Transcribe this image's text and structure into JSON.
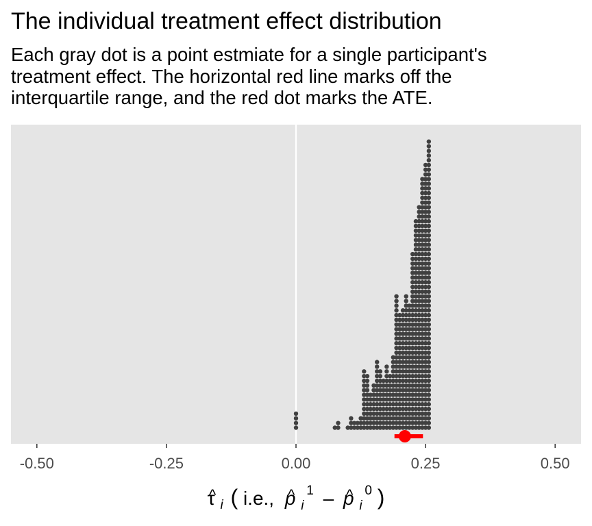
{
  "chart_data": {
    "type": "scatter",
    "subtype": "dot-plot",
    "title": "The individual treatment effect distribution",
    "subtitle_lines": [
      "Each gray dot is a point estmiate for a single participant's",
      "treatment effect. The horizontal red line marks off the",
      "interquartile range, and the red dot marks the ATE."
    ],
    "xlabel": {
      "tau": "τ",
      "hat": "^",
      "sub_i": "i",
      "open_paren": "(",
      "ie_text": "i.e.,",
      "p": "p",
      "sup_1": "1",
      "minus": "–",
      "sup_0": "0",
      "close_paren": ")"
    },
    "xlim": [
      -0.55,
      0.55
    ],
    "xticks": [
      {
        "value": -0.5,
        "label": "-0.50"
      },
      {
        "value": -0.25,
        "label": "-0.25"
      },
      {
        "value": 0.0,
        "label": "0.00"
      },
      {
        "value": 0.25,
        "label": "0.25"
      },
      {
        "value": 0.5,
        "label": "0.50"
      }
    ],
    "grid": true,
    "y_axis": "none",
    "dot_color": "#404040",
    "summary_color": "#ff0000",
    "ate": 0.21,
    "iqr": [
      0.19,
      0.245
    ],
    "bin_width": 0.00625,
    "bins": [
      {
        "x": 0.0,
        "count": 4
      },
      {
        "x": 0.075,
        "count": 1
      },
      {
        "x": 0.0813,
        "count": 2
      },
      {
        "x": 0.1,
        "count": 1
      },
      {
        "x": 0.1063,
        "count": 3
      },
      {
        "x": 0.1125,
        "count": 2
      },
      {
        "x": 0.1188,
        "count": 2
      },
      {
        "x": 0.125,
        "count": 3
      },
      {
        "x": 0.1313,
        "count": 13
      },
      {
        "x": 0.1375,
        "count": 12
      },
      {
        "x": 0.1438,
        "count": 8
      },
      {
        "x": 0.15,
        "count": 10
      },
      {
        "x": 0.1563,
        "count": 15
      },
      {
        "x": 0.1625,
        "count": 13
      },
      {
        "x": 0.1688,
        "count": 11
      },
      {
        "x": 0.175,
        "count": 14
      },
      {
        "x": 0.1813,
        "count": 12
      },
      {
        "x": 0.1875,
        "count": 16
      },
      {
        "x": 0.1938,
        "count": 29
      },
      {
        "x": 0.2,
        "count": 25
      },
      {
        "x": 0.2063,
        "count": 26
      },
      {
        "x": 0.2125,
        "count": 29
      },
      {
        "x": 0.2188,
        "count": 27
      },
      {
        "x": 0.225,
        "count": 38
      },
      {
        "x": 0.2313,
        "count": 45
      },
      {
        "x": 0.2375,
        "count": 48
      },
      {
        "x": 0.2438,
        "count": 54
      },
      {
        "x": 0.25,
        "count": 57
      },
      {
        "x": 0.2563,
        "count": 62
      }
    ]
  }
}
